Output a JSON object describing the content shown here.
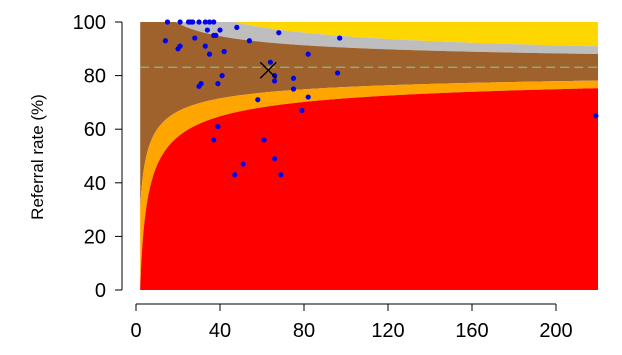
{
  "chart_data": {
    "type": "scatter",
    "title": "",
    "xlabel": "",
    "ylabel": "Referral rate (%)",
    "xlim": [
      0,
      220
    ],
    "ylim": [
      0,
      100
    ],
    "x_ticks": [
      0,
      40,
      80,
      120,
      160,
      200
    ],
    "y_ticks": [
      0,
      20,
      40,
      60,
      80,
      100
    ],
    "x_tick_labels": [
      "0",
      "40",
      "80",
      "120",
      "160",
      "200"
    ],
    "y_tick_labels": [
      "0",
      "20",
      "40",
      "60",
      "80",
      "100"
    ],
    "grid": false,
    "legend": "none",
    "funnel": {
      "mean_rate": 83.1,
      "x_start": 2,
      "x_end": 220,
      "z_inner": 1.96,
      "z_outer": 3.09
    },
    "colors": {
      "outer_low": "#ff0000",
      "inner_low": "#ffa500",
      "within": "#a0622d",
      "inner_high": "#bebebe",
      "outer_high": "#ffd700",
      "mean_line": "#7fb77f",
      "points": "#0000ee",
      "mean_marker": "#000000"
    },
    "mean_marker": {
      "x": 63,
      "y": 82
    },
    "points": [
      {
        "x": 14,
        "y": 93
      },
      {
        "x": 15,
        "y": 100
      },
      {
        "x": 20,
        "y": 90
      },
      {
        "x": 21,
        "y": 91
      },
      {
        "x": 21,
        "y": 100
      },
      {
        "x": 25,
        "y": 100
      },
      {
        "x": 26,
        "y": 100
      },
      {
        "x": 27,
        "y": 100
      },
      {
        "x": 28,
        "y": 94
      },
      {
        "x": 30,
        "y": 100
      },
      {
        "x": 30,
        "y": 76
      },
      {
        "x": 31,
        "y": 77
      },
      {
        "x": 33,
        "y": 100
      },
      {
        "x": 33,
        "y": 91
      },
      {
        "x": 34,
        "y": 97
      },
      {
        "x": 35,
        "y": 88
      },
      {
        "x": 35,
        "y": 100
      },
      {
        "x": 37,
        "y": 100
      },
      {
        "x": 37,
        "y": 95
      },
      {
        "x": 37,
        "y": 56
      },
      {
        "x": 38,
        "y": 95
      },
      {
        "x": 39,
        "y": 61
      },
      {
        "x": 39,
        "y": 77
      },
      {
        "x": 40,
        "y": 97
      },
      {
        "x": 41,
        "y": 80
      },
      {
        "x": 42,
        "y": 89
      },
      {
        "x": 47,
        "y": 43
      },
      {
        "x": 48,
        "y": 98
      },
      {
        "x": 51,
        "y": 47
      },
      {
        "x": 54,
        "y": 93
      },
      {
        "x": 58,
        "y": 71
      },
      {
        "x": 61,
        "y": 56
      },
      {
        "x": 64,
        "y": 85
      },
      {
        "x": 66,
        "y": 80
      },
      {
        "x": 66,
        "y": 49
      },
      {
        "x": 66,
        "y": 78
      },
      {
        "x": 68,
        "y": 96
      },
      {
        "x": 69,
        "y": 43
      },
      {
        "x": 75,
        "y": 79
      },
      {
        "x": 75,
        "y": 75
      },
      {
        "x": 79,
        "y": 67
      },
      {
        "x": 82,
        "y": 72
      },
      {
        "x": 82,
        "y": 88
      },
      {
        "x": 96,
        "y": 81
      },
      {
        "x": 97,
        "y": 94
      },
      {
        "x": 219,
        "y": 65
      }
    ]
  }
}
